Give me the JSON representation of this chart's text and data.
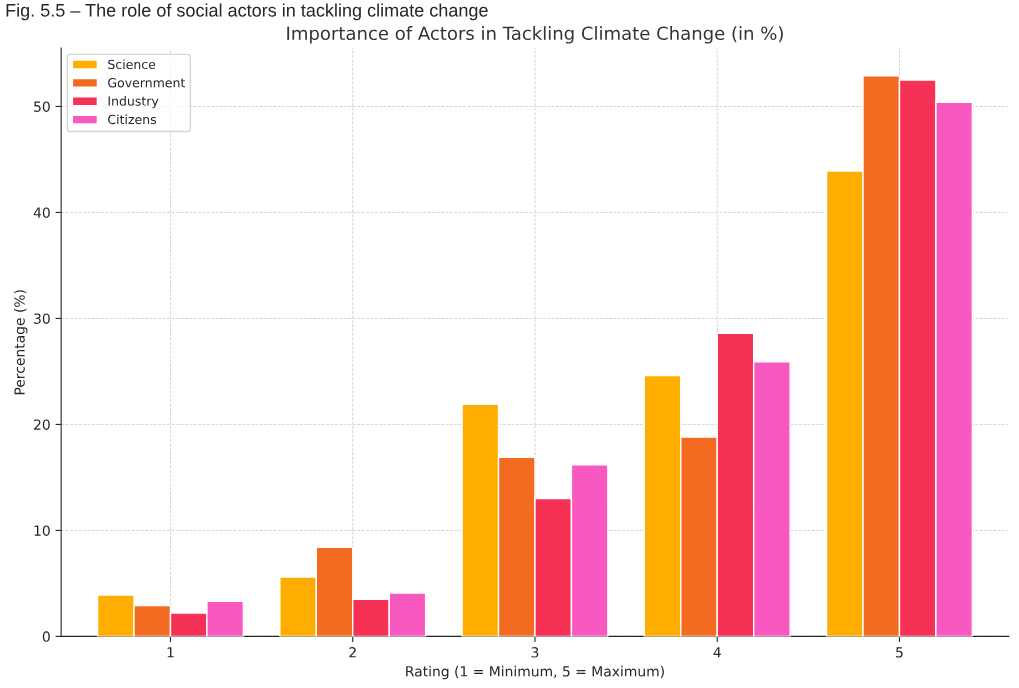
{
  "chart_data": {
    "type": "bar",
    "title": "Importance of Actors in Tackling Climate Change (in %)",
    "xlabel": "Rating (1 = Minimum, 5 = Maximum)",
    "ylabel": "Percentage (%)",
    "annotations": [
      "Fig. 5.5 – The role of social actors in tackling climate change"
    ],
    "categories": [
      "1",
      "2",
      "3",
      "4",
      "5"
    ],
    "series": [
      {
        "name": "Science",
        "color": "#ffae00",
        "values": [
          3.9,
          5.6,
          21.9,
          24.6,
          43.9
        ]
      },
      {
        "name": "Government",
        "color": "#f26b21",
        "values": [
          2.9,
          8.4,
          16.9,
          18.8,
          52.9
        ]
      },
      {
        "name": "Industry",
        "color": "#f53155",
        "values": [
          2.2,
          3.5,
          13.0,
          28.6,
          52.5
        ]
      },
      {
        "name": "Citizens",
        "color": "#f859c0",
        "values": [
          3.3,
          4.1,
          16.2,
          25.9,
          50.4
        ]
      }
    ],
    "ylim": [
      0,
      55.5
    ],
    "yticks": [
      0,
      10,
      20,
      30,
      40,
      50
    ],
    "grid": true,
    "legend": "top left"
  }
}
